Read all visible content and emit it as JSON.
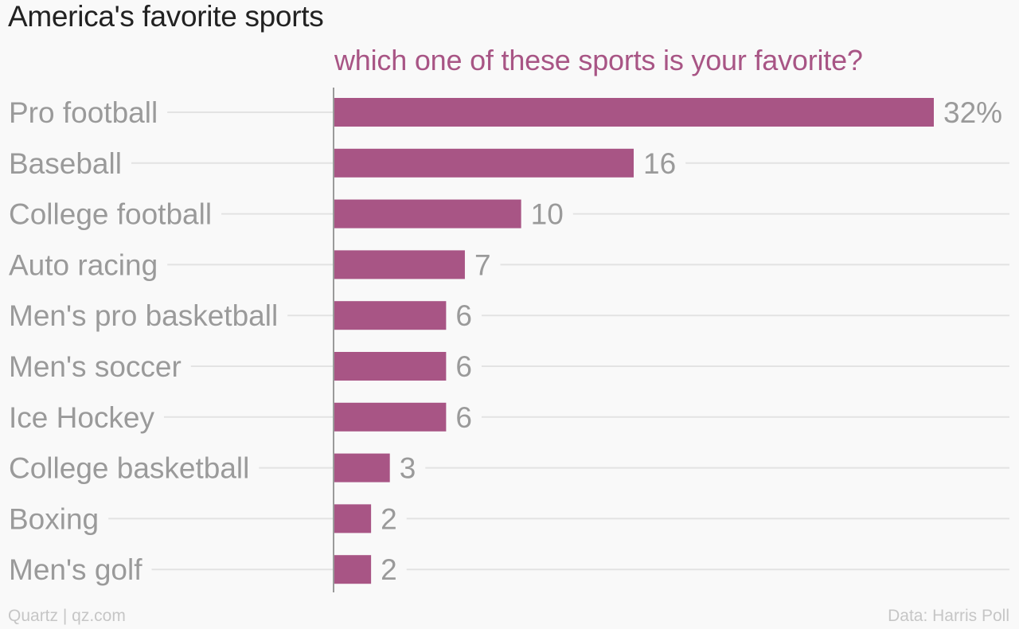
{
  "chart_data": {
    "type": "bar",
    "orientation": "horizontal",
    "title": "America's favorite sports",
    "subtitle": "which one of these sports is your favorite?",
    "categories": [
      "Pro football",
      "Baseball",
      "College football",
      "Auto racing",
      "Men's pro basketball",
      "Men's soccer",
      "Ice Hockey",
      "College basketball",
      "Boxing",
      "Men's golf"
    ],
    "values": [
      32,
      16,
      10,
      7,
      6,
      6,
      6,
      3,
      2,
      2
    ],
    "value_labels": [
      "32%",
      "16",
      "10",
      "7",
      "6",
      "6",
      "6",
      "3",
      "2",
      "2"
    ],
    "unit": "%",
    "xlim": [
      0,
      32
    ],
    "grid": true,
    "legend": "none"
  },
  "colors": {
    "bar": "#a85585",
    "subtitle": "#a85585",
    "gridline": "#e3e3e3",
    "axis": "#9a9a9a"
  },
  "footer": {
    "left": "Quartz | qz.com",
    "right": "Data: Harris Poll"
  }
}
